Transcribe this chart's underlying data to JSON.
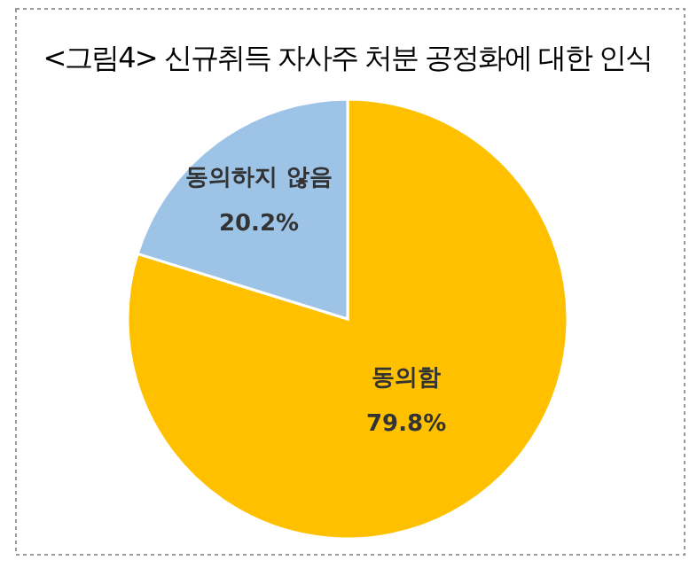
{
  "chart_data": {
    "type": "pie",
    "title": "<그림4> 신규취득 자사주 처분 공정화에 대한 인식",
    "categories": [
      "동의함",
      "동의하지 않음"
    ],
    "values": [
      79.8,
      20.2
    ],
    "colors": [
      "#ffc000",
      "#9dc3e6"
    ],
    "value_labels": [
      "79.8%",
      "20.2%"
    ]
  }
}
